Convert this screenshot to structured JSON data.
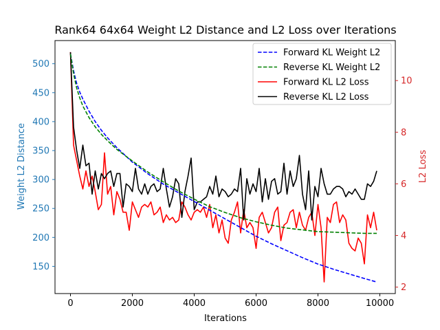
{
  "chart_data": {
    "type": "line",
    "title": "Rank64 64x64 Weight L2 Distance and L2 Loss over Iterations",
    "xlabel": "Iterations",
    "ylabel_left": "Weight L2 Distance",
    "ylabel_right": "L2 Loss",
    "xlim": [
      -500,
      10500
    ],
    "ylim_left": [
      103,
      540
    ],
    "ylim_right": [
      1.75,
      11.55
    ],
    "x_ticks": [
      0,
      2000,
      4000,
      6000,
      8000,
      10000
    ],
    "y_left_ticks": [
      150,
      200,
      250,
      300,
      350,
      400,
      450,
      500
    ],
    "y_right_ticks": [
      2,
      4,
      6,
      8,
      10
    ],
    "left_color": "#1f77b4",
    "right_color": "#d62728",
    "grid": false,
    "legend_position": "top-right",
    "series": [
      {
        "name": "Forward KL Weight L2",
        "axis": "left",
        "style": "dashed",
        "color": "#0000ff",
        "x": [
          0,
          100,
          200,
          300,
          400,
          600,
          800,
          1000,
          1200,
          1500,
          2000,
          2500,
          3000,
          3500,
          4000,
          4500,
          5000,
          5500,
          6000,
          6500,
          7000,
          7500,
          8000,
          8500,
          9000,
          9500,
          9900
        ],
        "values": [
          517,
          488,
          466,
          451,
          439,
          418,
          400,
          385,
          372,
          355,
          330,
          310,
          292,
          277,
          262,
          247,
          232,
          217,
          202,
          189,
          177,
          165,
          154,
          145,
          137,
          129,
          123
        ]
      },
      {
        "name": "Reverse KL Weight L2",
        "axis": "left",
        "style": "dashed",
        "color": "#008000",
        "x": [
          0,
          100,
          200,
          300,
          400,
          600,
          800,
          1000,
          1200,
          1500,
          2000,
          2500,
          3000,
          3500,
          4000,
          4500,
          5000,
          5500,
          6000,
          6500,
          7000,
          7500,
          8000,
          8500,
          9000,
          9500,
          9900
        ],
        "values": [
          517,
          483,
          458,
          441,
          427,
          407,
          391,
          378,
          367,
          352,
          332,
          313,
          296,
          280,
          266,
          253,
          243,
          234,
          227,
          221,
          216,
          213,
          210,
          209,
          208,
          207,
          207
        ]
      },
      {
        "name": "Forward KL L2 Loss",
        "axis": "right",
        "style": "solid",
        "color": "#ff0000",
        "x": [
          0,
          100,
          200,
          300,
          400,
          500,
          600,
          700,
          800,
          900,
          1000,
          1100,
          1200,
          1300,
          1400,
          1500,
          1600,
          1700,
          1800,
          1900,
          2000,
          2100,
          2200,
          2300,
          2400,
          2500,
          2600,
          2700,
          2800,
          2900,
          3000,
          3100,
          3200,
          3300,
          3400,
          3500,
          3600,
          3700,
          3800,
          3900,
          4000,
          4100,
          4200,
          4300,
          4400,
          4500,
          4600,
          4700,
          4800,
          4900,
          5000,
          5100,
          5200,
          5300,
          5400,
          5500,
          5600,
          5700,
          5800,
          5900,
          6000,
          6100,
          6200,
          6300,
          6400,
          6500,
          6600,
          6700,
          6800,
          6900,
          7000,
          7100,
          7200,
          7300,
          7400,
          7500,
          7600,
          7700,
          7800,
          7900,
          8000,
          8100,
          8200,
          8300,
          8400,
          8500,
          8600,
          8700,
          8800,
          8900,
          9000,
          9100,
          9200,
          9300,
          9400,
          9500,
          9600,
          9700,
          9800,
          9900
        ],
        "values": [
          11.1,
          7.5,
          6.9,
          6.3,
          5.8,
          6.5,
          5.9,
          6.3,
          5.7,
          5.0,
          5.2,
          7.2,
          5.6,
          5.9,
          4.8,
          5.7,
          5.4,
          4.9,
          4.9,
          4.2,
          5.3,
          5.0,
          4.7,
          5.1,
          5.2,
          5.1,
          5.3,
          4.8,
          4.9,
          5.1,
          4.5,
          4.8,
          4.6,
          4.7,
          4.5,
          4.6,
          5.3,
          5.1,
          4.8,
          4.6,
          4.9,
          5.0,
          4.9,
          5.1,
          4.7,
          5.2,
          4.3,
          4.8,
          4.1,
          4.6,
          3.9,
          3.7,
          4.6,
          4.9,
          5.3,
          4.1,
          5.0,
          4.3,
          4.5,
          4.3,
          3.5,
          4.7,
          4.9,
          4.5,
          4.1,
          4.3,
          4.9,
          5.1,
          3.8,
          4.4,
          4.5,
          4.9,
          5.0,
          4.3,
          4.9,
          4.4,
          4.2,
          4.7,
          4.9,
          4.0,
          5.2,
          4.3,
          2.2,
          4.7,
          4.5,
          5.2,
          5.3,
          4.5,
          4.8,
          4.6,
          3.7,
          3.5,
          3.4,
          3.9,
          3.7,
          2.9,
          4.8,
          4.3,
          4.9,
          4.2
        ],
        "_note": ""
      },
      {
        "name": "Reverse KL L2 Loss",
        "axis": "right",
        "style": "solid",
        "color": "#000000",
        "x": [
          0,
          100,
          200,
          300,
          400,
          500,
          600,
          700,
          800,
          900,
          1000,
          1100,
          1200,
          1300,
          1400,
          1500,
          1600,
          1700,
          1800,
          1900,
          2000,
          2100,
          2200,
          2300,
          2400,
          2500,
          2600,
          2700,
          2800,
          2900,
          3000,
          3100,
          3200,
          3300,
          3400,
          3500,
          3600,
          3700,
          3800,
          3900,
          4000,
          4100,
          4200,
          4300,
          4400,
          4500,
          4600,
          4700,
          4800,
          4900,
          5000,
          5100,
          5200,
          5300,
          5400,
          5500,
          5600,
          5700,
          5800,
          5900,
          6000,
          6100,
          6200,
          6300,
          6400,
          6500,
          6600,
          6700,
          6800,
          6900,
          7000,
          7100,
          7200,
          7300,
          7400,
          7500,
          7600,
          7700,
          7800,
          7900,
          8000,
          8100,
          8200,
          8300,
          8400,
          8500,
          8600,
          8700,
          8800,
          8900,
          9000,
          9100,
          9200,
          9300,
          9400,
          9500,
          9600,
          9700,
          9800,
          9900
        ],
        "values": [
          11.1,
          8.2,
          7.3,
          6.6,
          7.5,
          6.7,
          6.8,
          5.6,
          6.5,
          5.8,
          6.4,
          6.2,
          6.4,
          6.5,
          5.9,
          6.4,
          6.4,
          5.1,
          6.0,
          5.9,
          5.7,
          6.6,
          5.8,
          5.6,
          6.0,
          5.6,
          5.9,
          6.0,
          5.7,
          5.8,
          6.6,
          5.8,
          5.1,
          5.5,
          6.2,
          6.0,
          4.7,
          5.7,
          6.3,
          7.0,
          5.0,
          5.3,
          5.3,
          5.4,
          5.5,
          5.9,
          5.6,
          6.3,
          5.5,
          5.8,
          5.7,
          5.5,
          5.6,
          5.8,
          5.7,
          6.6,
          4.6,
          6.2,
          5.6,
          6.0,
          5.7,
          6.6,
          5.3,
          6.2,
          5.4,
          6.1,
          6.2,
          5.6,
          5.7,
          6.8,
          5.6,
          6.5,
          5.9,
          6.2,
          7.1,
          5.6,
          5.0,
          6.5,
          4.6,
          5.9,
          5.5,
          6.6,
          6.0,
          5.6,
          5.6,
          5.8,
          5.9,
          5.9,
          5.8,
          5.5,
          5.7,
          5.6,
          5.8,
          5.6,
          5.4,
          5.4,
          6.0,
          5.9,
          6.1,
          6.5
        ]
      }
    ]
  }
}
